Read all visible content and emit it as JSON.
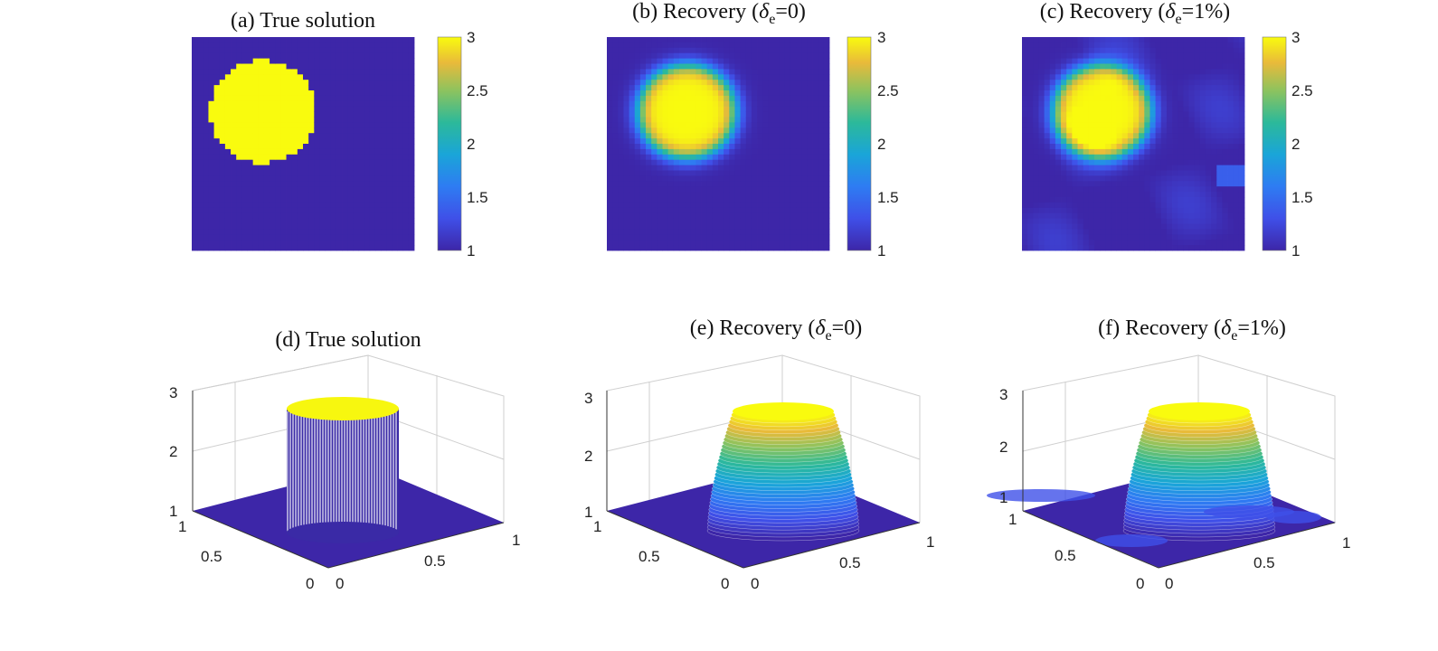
{
  "colors": {
    "low": "#3d26a8",
    "mid": "#1fb3ad",
    "high": "#f9fb0e",
    "grid": "#d8d8d8"
  },
  "colorbar_ticks": [
    "3",
    "2.5",
    "2",
    "1.5",
    "1"
  ],
  "chart_data": [
    {
      "id": "a",
      "type": "heatmap",
      "title_prefix": "(a) True solution",
      "title_delta": "",
      "title_sub": "",
      "title_suffix": "",
      "z_range": [
        1,
        3
      ],
      "circle_center": [
        0.32,
        0.65
      ],
      "radius": 0.24,
      "profile": "sharp",
      "noise": false,
      "colorbar_ticks": [
        "3",
        "2.5",
        "2",
        "1.5",
        "1"
      ]
    },
    {
      "id": "b",
      "type": "heatmap",
      "title_prefix": "(b) Recovery (",
      "title_delta": "δ",
      "title_sub": "e",
      "title_suffix": "=0)",
      "z_range": [
        1,
        3
      ],
      "circle_center": [
        0.36,
        0.65
      ],
      "radius": 0.22,
      "profile": "smooth",
      "noise": false,
      "colorbar_ticks": [
        "3",
        "2.5",
        "2",
        "1.5",
        "1"
      ]
    },
    {
      "id": "c",
      "type": "heatmap",
      "title_prefix": "(c) Recovery (",
      "title_delta": "δ",
      "title_sub": "e",
      "title_suffix": "=1%)",
      "z_range": [
        1,
        3
      ],
      "circle_center": [
        0.36,
        0.65
      ],
      "radius": 0.22,
      "profile": "smooth",
      "noise": true,
      "colorbar_ticks": [
        "3",
        "2.5",
        "2",
        "1.5",
        "1"
      ]
    },
    {
      "id": "d",
      "type": "surface",
      "title_prefix": "(d) True solution",
      "title_delta": "",
      "title_sub": "",
      "title_suffix": "",
      "z_range": [
        1,
        3
      ],
      "profile": "sharp",
      "z_ticks": [
        "3",
        "2",
        "1"
      ],
      "y_ticks": [
        "1",
        "0.5",
        "0"
      ],
      "x_ticks": [
        "0",
        "0.5",
        "1"
      ]
    },
    {
      "id": "e",
      "type": "surface",
      "title_prefix": "(e) Recovery (",
      "title_delta": "δ",
      "title_sub": "e",
      "title_suffix": "=0)",
      "z_range": [
        1,
        3
      ],
      "profile": "smooth",
      "z_ticks": [
        "3",
        "2",
        "1"
      ],
      "y_ticks": [
        "1",
        "0.5",
        "0"
      ],
      "x_ticks": [
        "0",
        "0.5",
        "1"
      ]
    },
    {
      "id": "f",
      "type": "surface",
      "title_prefix": "(f) Recovery (",
      "title_delta": "δ",
      "title_sub": "e",
      "title_suffix": "=1%)",
      "z_range": [
        1,
        3
      ],
      "profile": "smooth",
      "z_ticks": [
        "3",
        "2",
        "1"
      ],
      "y_ticks": [
        "1",
        "0.5",
        "0"
      ],
      "x_ticks": [
        "0",
        "0.5",
        "1"
      ]
    }
  ]
}
